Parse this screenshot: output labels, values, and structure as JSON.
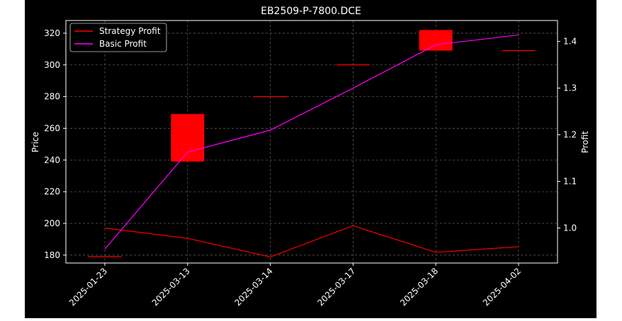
{
  "chart_data": {
    "type": "candlestick",
    "title": "EB2509-P-7800.DCE",
    "xlabel": "",
    "ylabel": "Price",
    "ylabel_right": "Profit",
    "categories": [
      "2025-01-23",
      "2025-03-13",
      "2025-03-14",
      "2025-03-17",
      "2025-03-18",
      "2025-04-02"
    ],
    "candles": [
      {
        "open": 179,
        "close": 179,
        "high": 179,
        "low": 179
      },
      {
        "open": 269,
        "close": 239,
        "high": 269,
        "low": 239
      },
      {
        "open": 280,
        "close": 280,
        "high": 280,
        "low": 280
      },
      {
        "open": 300,
        "close": 300,
        "high": 300,
        "low": 300
      },
      {
        "open": 322,
        "close": 309,
        "high": 322,
        "low": 309
      },
      {
        "open": 309,
        "close": 309,
        "high": 309,
        "low": 309
      }
    ],
    "series": [
      {
        "name": "Strategy Profit",
        "axis": "right",
        "color": "#ff0000",
        "values": [
          1.0,
          0.978,
          0.938,
          1.005,
          0.948,
          0.96
        ]
      },
      {
        "name": "Basic Profit",
        "axis": "right",
        "color": "#ff00ff",
        "values": [
          0.955,
          1.163,
          1.21,
          1.3,
          1.393,
          1.414
        ]
      }
    ],
    "ylim": [
      175,
      328
    ],
    "ylim_right": [
      0.925,
      1.445
    ],
    "yticks": [
      "180",
      "200",
      "220",
      "240",
      "260",
      "280",
      "300",
      "320"
    ],
    "yticks_right": [
      "1.0",
      "1.1",
      "1.2",
      "1.3",
      "1.4"
    ],
    "ytick_values": [
      180,
      200,
      220,
      240,
      260,
      280,
      300,
      320
    ],
    "ytick_right_values": [
      1.0,
      1.1,
      1.2,
      1.3,
      1.4
    ],
    "grid": true,
    "legend": "top-left",
    "colors": {
      "figure_bg": "#000000",
      "axes_bg": "#000000",
      "text": "#ffffff",
      "grid": "#555555",
      "candle": "#ff0000"
    }
  }
}
